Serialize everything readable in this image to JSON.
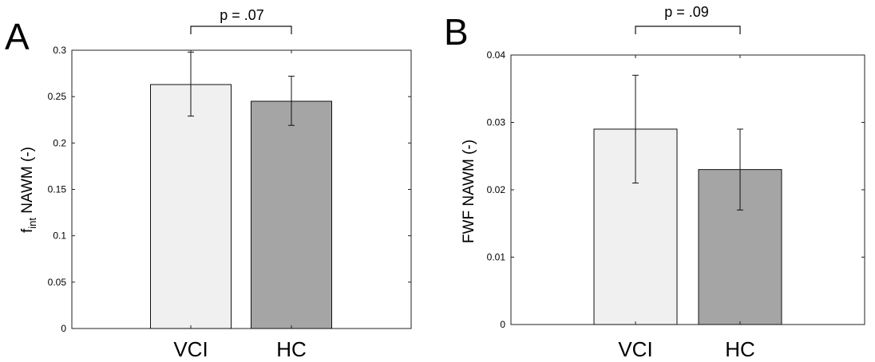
{
  "chart_data": [
    {
      "type": "bar",
      "panel": "A",
      "categories": [
        "VCI",
        "HC"
      ],
      "values": [
        0.263,
        0.245
      ],
      "error_bars": [
        {
          "low": 0.229,
          "high": 0.298
        },
        {
          "low": 0.219,
          "high": 0.272
        }
      ],
      "bar_colors": [
        "#f0f0f0",
        "#a5a5a5"
      ],
      "ylabel_main": "f",
      "ylabel_sub": "int",
      "ylabel_rest": " NAWM (-)",
      "ylim": [
        0,
        0.3
      ],
      "yticks": [
        0,
        0.05,
        0.1,
        0.15,
        0.2,
        0.25,
        0.3
      ],
      "ytick_labels": [
        "0",
        "0.05",
        "0.1",
        "0.15",
        "0.2",
        "0.25",
        "0.3"
      ],
      "annotation": "p = .07"
    },
    {
      "type": "bar",
      "panel": "B",
      "categories": [
        "VCI",
        "HC"
      ],
      "values": [
        0.029,
        0.023
      ],
      "error_bars": [
        {
          "low": 0.021,
          "high": 0.037
        },
        {
          "low": 0.017,
          "high": 0.029
        }
      ],
      "bar_colors": [
        "#f0f0f0",
        "#a5a5a5"
      ],
      "ylabel_main": "FWF NAWM (-)",
      "ylabel_sub": "",
      "ylabel_rest": "",
      "ylim": [
        0,
        0.04
      ],
      "yticks": [
        0,
        0.01,
        0.02,
        0.03,
        0.04
      ],
      "ytick_labels": [
        "0",
        "0.01",
        "0.02",
        "0.03",
        "0.04"
      ],
      "annotation": "p = .09"
    }
  ]
}
